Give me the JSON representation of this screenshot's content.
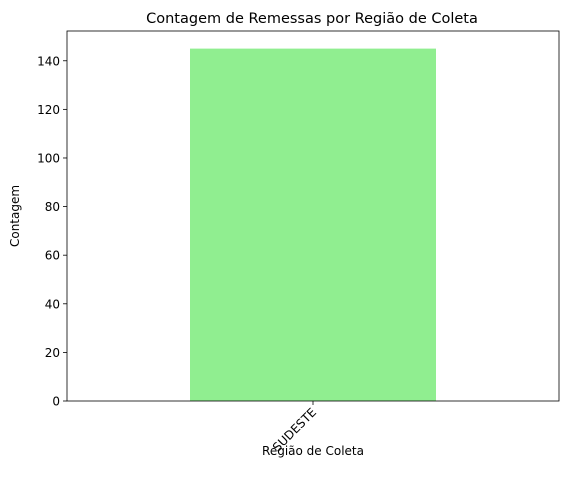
{
  "chart_data": {
    "type": "bar",
    "title": "Contagem de Remessas por Região de Coleta",
    "xlabel": "Região de Coleta",
    "ylabel": "Contagem",
    "categories": [
      "SUDESTE"
    ],
    "values": [
      145
    ],
    "ylim": [
      0,
      152.25
    ],
    "yticks": [
      0,
      20,
      40,
      60,
      80,
      100,
      120,
      140
    ],
    "bar_color": "#90ee90",
    "grid": false,
    "legend": "none",
    "xtick_rotation_deg": 45
  }
}
